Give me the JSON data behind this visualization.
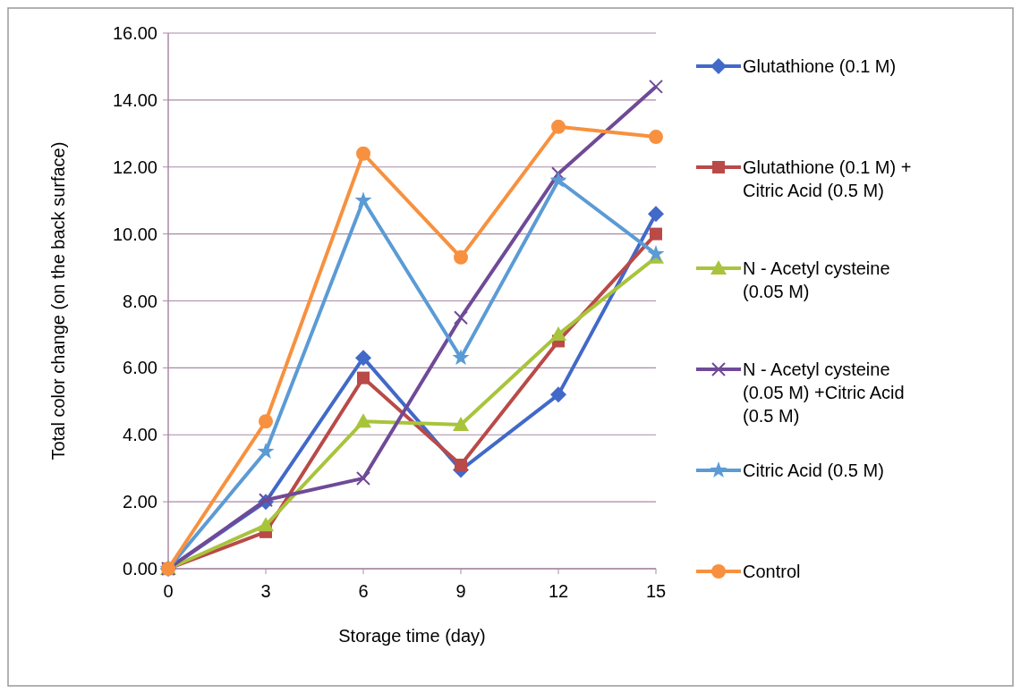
{
  "chart_data": {
    "type": "line",
    "xlabel": "Storage time (day)",
    "ylabel": "Total color change (on the back surface)",
    "x": [
      0,
      3,
      6,
      9,
      12,
      15
    ],
    "xlim": [
      0,
      15
    ],
    "xticks": [
      0,
      3,
      6,
      9,
      12,
      15
    ],
    "ylim": [
      0,
      16
    ],
    "yticks": [
      {
        "value": 0,
        "label": "0.00"
      },
      {
        "value": 2,
        "label": "2.00"
      },
      {
        "value": 4,
        "label": "4.00"
      },
      {
        "value": 6,
        "label": "6.00"
      },
      {
        "value": 8,
        "label": "8.00"
      },
      {
        "value": 10,
        "label": "10.00"
      },
      {
        "value": 12,
        "label": "12.00"
      },
      {
        "value": 14,
        "label": "14.00"
      },
      {
        "value": 16,
        "label": "16.00"
      }
    ],
    "grid": "y",
    "legend": "right",
    "series": [
      {
        "name": "Glutathione (0.1 M)",
        "color": "#4169c8",
        "marker": "diamond",
        "values": [
          0,
          2.0,
          6.3,
          2.95,
          5.2,
          10.6
        ]
      },
      {
        "name": "Glutathione (0.1 M) + Citric Acid (0.5 M)",
        "color": "#b94a48",
        "marker": "square",
        "values": [
          0,
          1.1,
          5.7,
          3.1,
          6.8,
          10.0
        ]
      },
      {
        "name": "N - Acetyl cysteine (0.05 M)",
        "color": "#a8c43c",
        "marker": "triangle",
        "values": [
          0,
          1.3,
          4.4,
          4.3,
          7.0,
          9.3
        ]
      },
      {
        "name": "N - Acetyl cysteine (0.05 M) +Citric Acid (0.5 M)",
        "color": "#6f4a97",
        "marker": "cross",
        "values": [
          0,
          2.05,
          2.7,
          7.5,
          11.8,
          14.4
        ]
      },
      {
        "name": "Citric Acid (0.5 M)",
        "color": "#5b9bd5",
        "marker": "star",
        "values": [
          0,
          3.5,
          11.0,
          6.3,
          11.6,
          9.4
        ]
      },
      {
        "name": "Control",
        "color": "#f7913f",
        "marker": "circle",
        "values": [
          0,
          4.4,
          12.4,
          9.3,
          13.2,
          12.9
        ]
      }
    ]
  }
}
